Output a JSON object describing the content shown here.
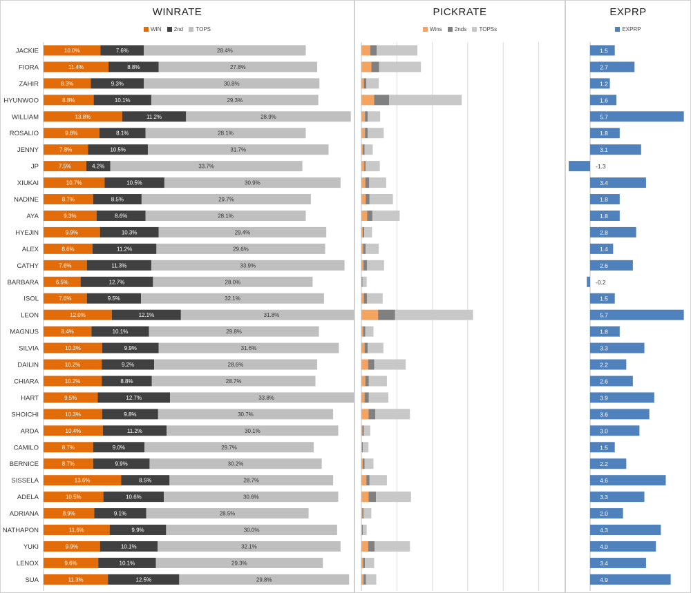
{
  "colors": {
    "win": "#e36c0a",
    "second": "#404040",
    "tops": "#bfbfbf",
    "pick_win": "#f4a460",
    "pick_second": "#808080",
    "pick_tops": "#c8c8c8",
    "exprp": "#4f81bd"
  },
  "panels": {
    "winrate": {
      "title": "WINRATE",
      "legend": [
        "WIN",
        "2nd",
        "TOPS"
      ]
    },
    "pickrate": {
      "title": "PICKRATE",
      "legend": [
        "Wins",
        "2nds",
        "TOPSs"
      ]
    },
    "exprp": {
      "title": "EXPRP",
      "legend": [
        "EXPRP"
      ]
    }
  },
  "chart_data": [
    {
      "type": "bar",
      "title": "WINRATE",
      "categories": [
        "JACKIE",
        "FIORA",
        "ZAHIR",
        "HYUNWOO",
        "WILLIAM",
        "ROSALIO",
        "JENNY",
        "JP",
        "XIUKAI",
        "NADINE",
        "AYA",
        "HYEJIN",
        "ALEX",
        "CATHY",
        "BARBARA",
        "ISOL",
        "LEON",
        "MAGNUS",
        "SILVIA",
        "DAILIN",
        "CHIARA",
        "HART",
        "SHOICHI",
        "ARDA",
        "CAMILO",
        "BERNICE",
        "SISSELA",
        "ADELA",
        "ADRIANA",
        "NATHAPON",
        "YUKI",
        "LENOX",
        "SUA"
      ],
      "stacked": true,
      "series": [
        {
          "name": "WIN",
          "values": [
            10.0,
            11.4,
            8.3,
            8.8,
            13.8,
            9.8,
            7.8,
            7.5,
            10.7,
            8.7,
            9.3,
            9.9,
            8.6,
            7.6,
            6.5,
            7.6,
            12.0,
            8.4,
            10.3,
            10.2,
            10.2,
            9.5,
            10.3,
            10.4,
            8.7,
            8.7,
            13.6,
            10.5,
            8.9,
            11.6,
            9.9,
            9.6,
            11.3
          ]
        },
        {
          "name": "2nd",
          "values": [
            7.6,
            8.8,
            9.3,
            10.1,
            11.2,
            8.1,
            10.5,
            4.2,
            10.5,
            8.5,
            8.6,
            10.3,
            11.2,
            11.3,
            12.7,
            9.5,
            12.1,
            10.1,
            9.9,
            9.2,
            8.8,
            12.7,
            9.8,
            11.2,
            9.0,
            9.9,
            8.5,
            10.6,
            9.1,
            9.9,
            10.1,
            10.1,
            12.5
          ]
        },
        {
          "name": "TOPS",
          "values": [
            28.4,
            27.8,
            30.8,
            29.3,
            28.9,
            28.1,
            31.7,
            33.7,
            30.9,
            29.7,
            28.1,
            29.4,
            29.6,
            33.9,
            28.0,
            32.1,
            31.8,
            29.8,
            31.6,
            28.6,
            28.7,
            33.8,
            30.7,
            30.1,
            29.7,
            30.2,
            28.7,
            30.6,
            28.5,
            30.0,
            32.1,
            29.3,
            29.8
          ]
        }
      ]
    },
    {
      "type": "bar",
      "title": "PICKRATE",
      "stacked": true,
      "grid": true,
      "xlim": [
        0,
        6
      ],
      "series": [
        {
          "name": "Wins",
          "values": [
            0.25,
            0.28,
            0.07,
            0.36,
            0.1,
            0.1,
            0.04,
            0.08,
            0.11,
            0.12,
            0.16,
            0.04,
            0.05,
            0.06,
            0.01,
            0.07,
            0.47,
            0.05,
            0.09,
            0.19,
            0.11,
            0.09,
            0.2,
            0.03,
            0.02,
            0.04,
            0.14,
            0.2,
            0.03,
            0.02,
            0.19,
            0.05,
            0.06
          ]
        },
        {
          "name": "2nds",
          "values": [
            0.18,
            0.22,
            0.07,
            0.42,
            0.08,
            0.08,
            0.05,
            0.04,
            0.11,
            0.11,
            0.15,
            0.04,
            0.07,
            0.1,
            0.02,
            0.09,
            0.48,
            0.06,
            0.09,
            0.17,
            0.1,
            0.12,
            0.19,
            0.04,
            0.02,
            0.05,
            0.09,
            0.21,
            0.03,
            0.02,
            0.18,
            0.05,
            0.07
          ]
        },
        {
          "name": "TOPSs",
          "values": [
            1.15,
            1.18,
            0.35,
            2.05,
            0.35,
            0.45,
            0.23,
            0.4,
            0.48,
            0.66,
            0.77,
            0.22,
            0.37,
            0.48,
            0.12,
            0.44,
            2.2,
            0.23,
            0.44,
            0.89,
            0.51,
            0.55,
            0.98,
            0.18,
            0.16,
            0.25,
            0.49,
            0.99,
            0.22,
            0.11,
            1.0,
            0.26,
            0.29
          ]
        }
      ]
    },
    {
      "type": "bar",
      "title": "EXPRP",
      "series": [
        {
          "name": "EXPRP",
          "values": [
            1.5,
            2.7,
            1.2,
            1.6,
            5.7,
            1.8,
            3.1,
            -1.3,
            3.4,
            1.8,
            1.8,
            2.8,
            1.4,
            2.6,
            -0.2,
            1.5,
            5.7,
            1.8,
            3.3,
            2.2,
            2.6,
            3.9,
            3.6,
            3.0,
            1.5,
            2.2,
            4.6,
            3.3,
            2.0,
            4.3,
            4.0,
            3.4,
            4.9
          ]
        }
      ]
    }
  ]
}
